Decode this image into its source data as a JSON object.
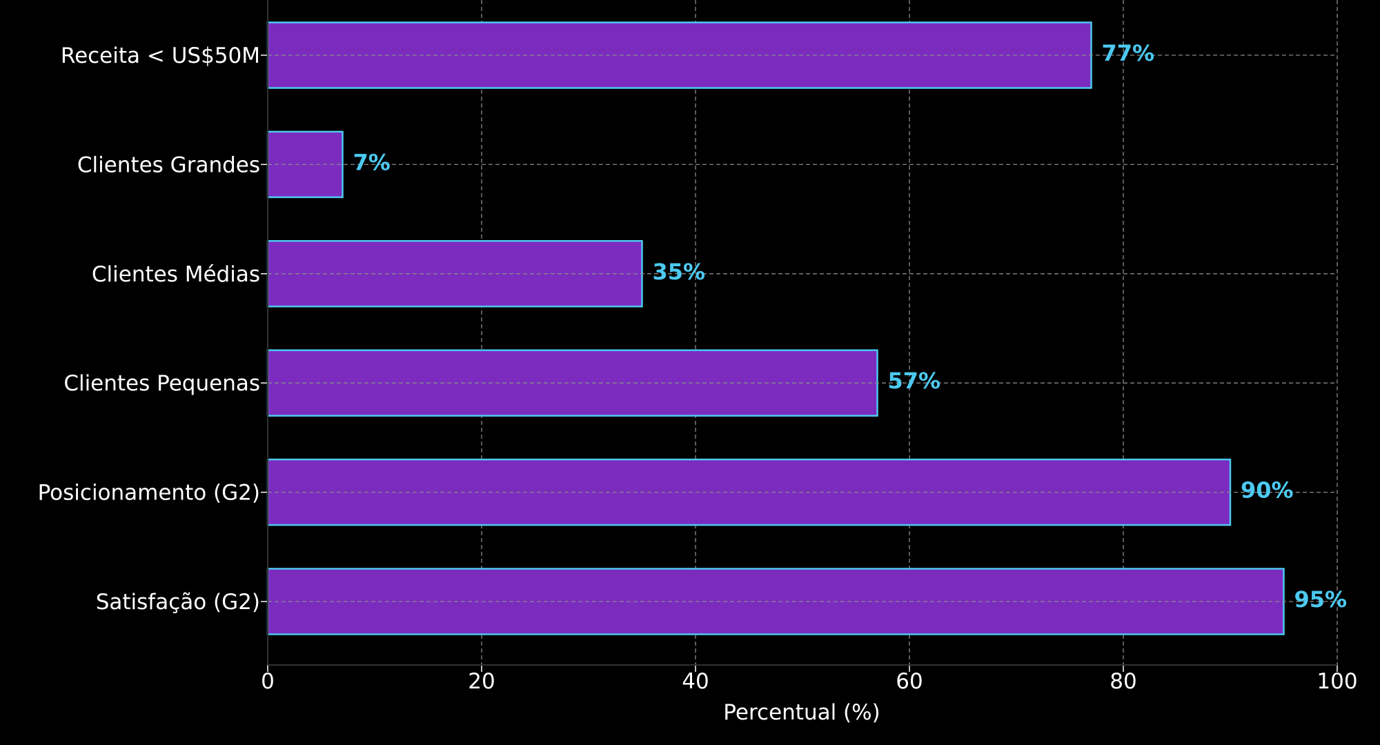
{
  "chart_data": {
    "type": "bar",
    "orientation": "horizontal",
    "categories": [
      "Receita < US$50M",
      "Clientes Grandes",
      "Clientes Médias",
      "Clientes Pequenas",
      "Posicionamento (G2)",
      "Satisfação (G2)"
    ],
    "values": [
      77,
      7,
      35,
      57,
      90,
      95
    ],
    "data_labels": [
      "77%",
      "7%",
      "35%",
      "57%",
      "90%",
      "95%"
    ],
    "xlabel": "Percentual (%)",
    "ylabel": "",
    "xlim": [
      0,
      100
    ],
    "xticks": [
      0,
      20,
      40,
      60,
      80,
      100
    ],
    "xtick_labels": [
      "0",
      "20",
      "40",
      "60",
      "80",
      "100"
    ],
    "grid": true,
    "colors": {
      "background": "#000000",
      "bar_fill": "#7b2cbf",
      "bar_edge": "#4cc9f0",
      "data_label": "#4cc9f0",
      "text": "#ffffff",
      "grid": "#8a8a8a",
      "axis": "#333333"
    }
  }
}
